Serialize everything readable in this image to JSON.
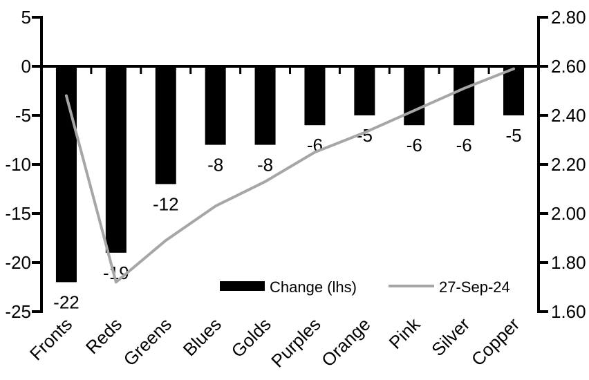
{
  "chart_data": {
    "type": "combo-bar-line",
    "title": "",
    "categories": [
      "Fronts",
      "Reds",
      "Greens",
      "Blues",
      "Golds",
      "Purples",
      "Orange",
      "Pink",
      "Silver",
      "Copper"
    ],
    "series": [
      {
        "name": "Change (lhs)",
        "type": "bar",
        "axis": "left",
        "color": "#000000",
        "values": [
          -22,
          -19,
          -12,
          -8,
          -8,
          -6,
          -5,
          -6,
          -6,
          -5
        ],
        "labels": [
          "-22",
          "-19",
          "-12",
          "-8",
          "-8",
          "-6",
          "-5",
          "-6",
          "-6",
          "-5"
        ]
      },
      {
        "name": "27-Sep-24",
        "type": "line",
        "axis": "right",
        "color": "#a6a6a6",
        "values": [
          2.48,
          1.72,
          1.89,
          2.03,
          2.13,
          2.25,
          2.33,
          2.42,
          2.51,
          2.59
        ]
      }
    ],
    "left_axis": {
      "min": -25,
      "max": 5,
      "tick_values": [
        5,
        0,
        -5,
        -10,
        -15,
        -20,
        -25
      ],
      "ticks": [
        "5",
        "0",
        "-5",
        "-10",
        "-15",
        "-20",
        "-25"
      ]
    },
    "right_axis": {
      "min": 1.6,
      "max": 2.8,
      "tick_values": [
        2.8,
        2.6,
        2.4,
        2.2,
        2.0,
        1.8,
        1.6
      ],
      "ticks": [
        "2.80",
        "2.60",
        "2.40",
        "2.20",
        "2.00",
        "1.80",
        "1.60"
      ]
    },
    "legend": {
      "position": "bottom-center-inside",
      "entries": [
        "Change (lhs)",
        "27-Sep-24"
      ]
    },
    "grid": false,
    "axis_color": "#000000",
    "text_color": "#000000",
    "background": "#ffffff"
  }
}
